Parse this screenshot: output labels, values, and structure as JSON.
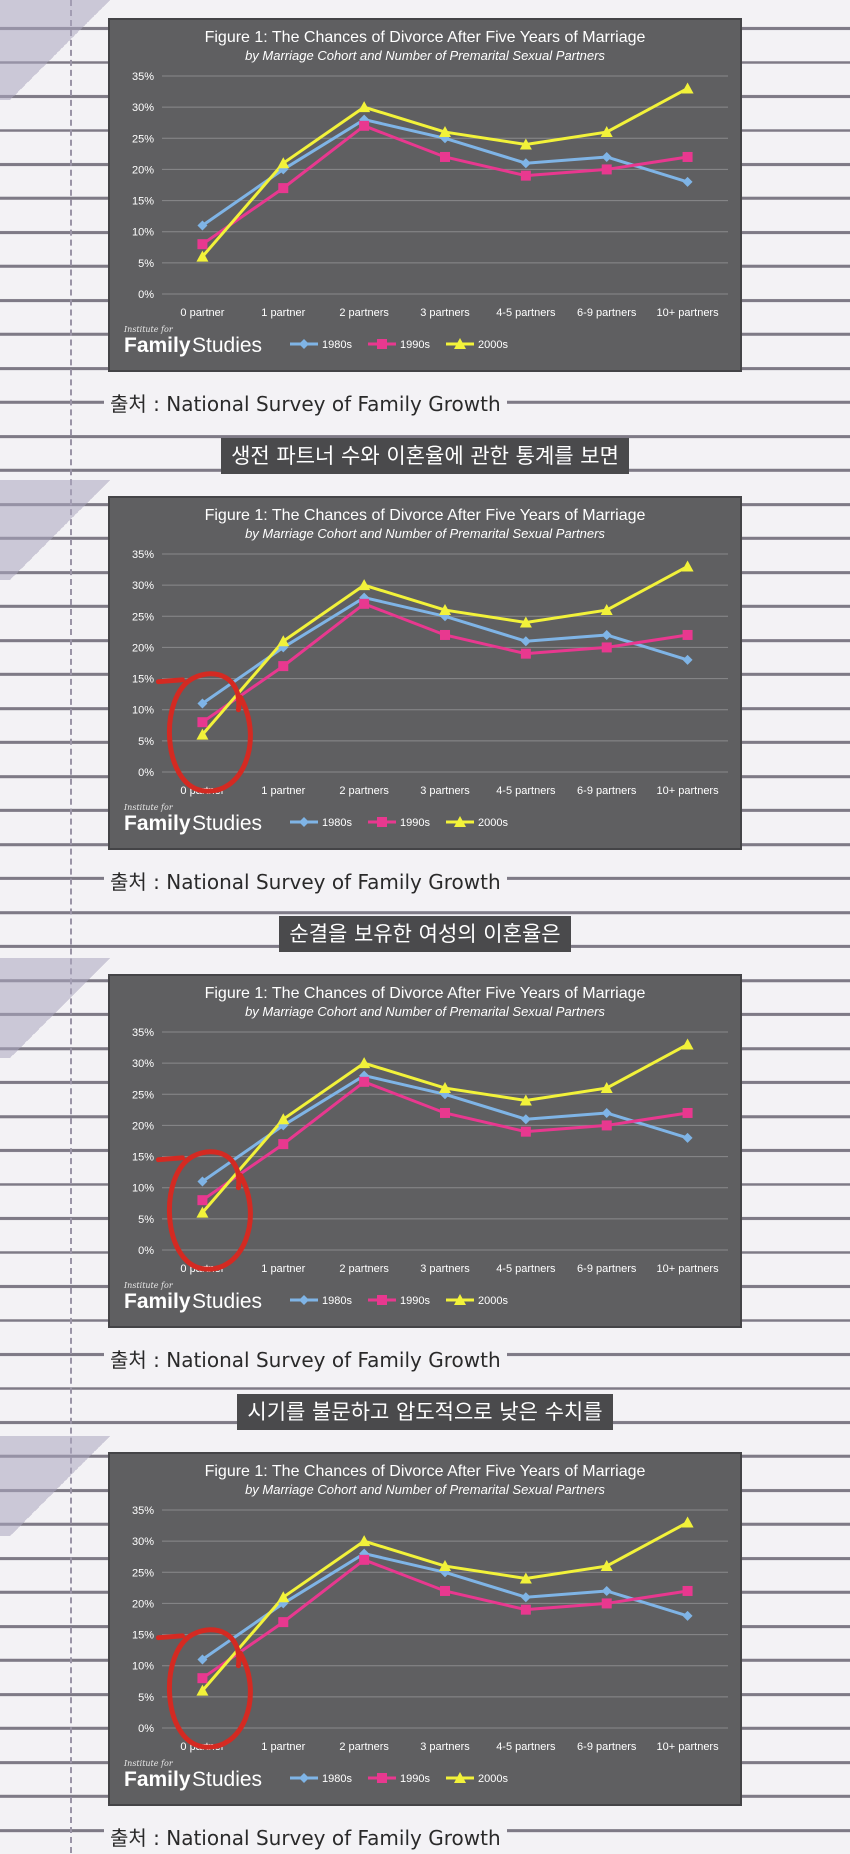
{
  "source_text": "출처 : National Survey of Family Growth",
  "captions": [
    "생전 파트너 수와 이혼율에 관한 통계를 보면",
    "순결을 보유한 여성의 이혼율은",
    "시기를 불문하고 압도적으로 낮은 수치를"
  ],
  "logo": {
    "small": "Institute for",
    "family": "Family",
    "studies": "Studies"
  },
  "colors": {
    "1980s": "#7fb4e6",
    "1990s": "#e8388f",
    "2000s": "#f2f23a",
    "circle": "#d42a22"
  },
  "chart_data": {
    "type": "line",
    "title": "Figure 1: The Chances of Divorce After Five Years of Marriage",
    "subtitle": "by Marriage Cohort and Number of Premarital Sexual Partners",
    "categories": [
      "0 partner",
      "1 partner",
      "2 partners",
      "3 partners",
      "4-5 partners",
      "6-9 partners",
      "10+ partners"
    ],
    "yticks": [
      "0%",
      "5%",
      "10%",
      "15%",
      "20%",
      "25%",
      "30%",
      "35%"
    ],
    "ylim": [
      0,
      35
    ],
    "grid": true,
    "legend": "bottom",
    "series": [
      {
        "name": "1980s",
        "marker": "diamond",
        "values": [
          11,
          20,
          28,
          25,
          21,
          22,
          18
        ]
      },
      {
        "name": "1990s",
        "marker": "square",
        "values": [
          8,
          17,
          27,
          22,
          19,
          20,
          22
        ]
      },
      {
        "name": "2000s",
        "marker": "triangle",
        "values": [
          6,
          21,
          30,
          26,
          24,
          26,
          33
        ]
      }
    ]
  }
}
